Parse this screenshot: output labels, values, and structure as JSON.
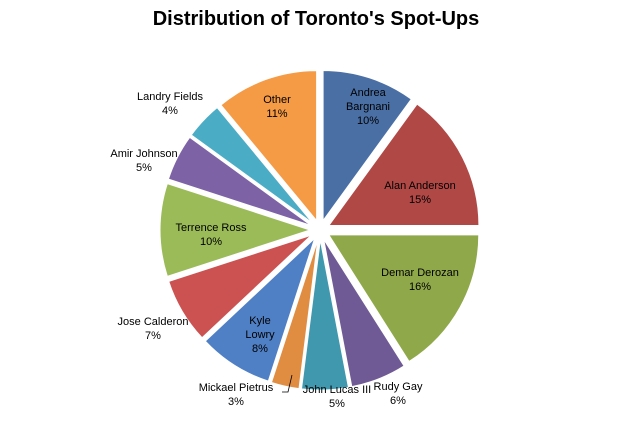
{
  "chart_data": {
    "type": "pie",
    "title": "Distribution of Toronto's Spot-Ups",
    "slices": [
      {
        "name": "Andrea Bargnani",
        "lines": [
          "Andrea",
          "Bargnani"
        ],
        "value": 10,
        "percent_label": "10%",
        "color": "#4a6fa5"
      },
      {
        "name": "Alan Anderson",
        "lines": [
          "Alan Anderson"
        ],
        "value": 15,
        "percent_label": "15%",
        "color": "#b04846"
      },
      {
        "name": "Demar Derozan",
        "lines": [
          "Demar Derozan"
        ],
        "value": 16,
        "percent_label": "16%",
        "color": "#8fa84a"
      },
      {
        "name": "Rudy Gay",
        "lines": [
          "Rudy Gay"
        ],
        "value": 6,
        "percent_label": "6%",
        "color": "#6f5a95"
      },
      {
        "name": "John Lucas III",
        "lines": [
          "John Lucas III"
        ],
        "value": 5,
        "percent_label": "5%",
        "color": "#3f98ad"
      },
      {
        "name": "Mickael Pietrus",
        "lines": [
          "Mickael Pietrus"
        ],
        "value": 3,
        "percent_label": "3%",
        "color": "#e08d42"
      },
      {
        "name": "Kyle Lowry",
        "lines": [
          "Kyle",
          "Lowry"
        ],
        "value": 8,
        "percent_label": "8%",
        "color": "#4f7fc4"
      },
      {
        "name": "Jose Calderon",
        "lines": [
          "Jose Calderon"
        ],
        "value": 7,
        "percent_label": "7%",
        "color": "#cc5252"
      },
      {
        "name": "Terrence Ross",
        "lines": [
          "Terrence Ross"
        ],
        "value": 10,
        "percent_label": "10%",
        "color": "#9bbb59"
      },
      {
        "name": "Amir Johnson",
        "lines": [
          "Amir Johnson"
        ],
        "value": 5,
        "percent_label": "5%",
        "color": "#7d62a6"
      },
      {
        "name": "Landry Fields",
        "lines": [
          "Landry Fields"
        ],
        "value": 4,
        "percent_label": "4%",
        "color": "#4bacc6"
      },
      {
        "name": "Other",
        "lines": [
          "Other"
        ],
        "value": 11,
        "percent_label": "11%",
        "color": "#f59a45"
      }
    ],
    "legend": "none"
  }
}
